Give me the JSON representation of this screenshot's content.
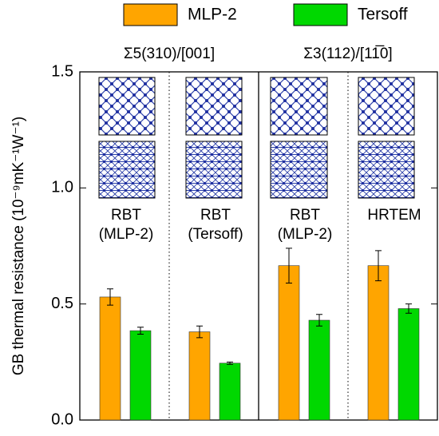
{
  "chart_data": {
    "type": "bar",
    "ylabel": "GB thermal resistance (10⁻⁹mK⁻¹W⁻¹)",
    "group_titles": [
      "Σ5(310)/[001]",
      "Σ3(112)/[11̅0]"
    ],
    "categories": [
      [
        "RBT",
        "(MLP-2)"
      ],
      [
        "RBT",
        "(Tersoff)"
      ],
      [
        "RBT",
        "(MLP-2)"
      ],
      [
        "HRTEM"
      ]
    ],
    "series": [
      {
        "name": "MLP-2",
        "color": "#ffa500",
        "values": [
          0.53,
          0.38,
          0.665,
          0.665
        ],
        "errors": [
          0.035,
          0.025,
          0.075,
          0.065
        ]
      },
      {
        "name": "Tersoff",
        "color": "#00d800",
        "values": [
          0.385,
          0.245,
          0.43,
          0.48
        ],
        "errors": [
          0.015,
          0.005,
          0.025,
          0.02
        ]
      }
    ],
    "ylim": [
      0,
      1.5
    ],
    "yticks": [
      {
        "value": 0,
        "label": "0.0"
      },
      0.5,
      {
        "value": 1,
        "label": "1.0"
      },
      1.5
    ]
  }
}
